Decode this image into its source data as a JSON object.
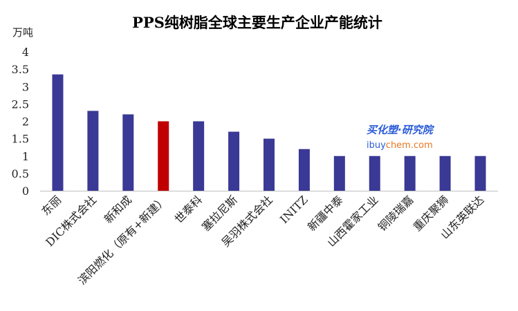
{
  "chart_data": {
    "type": "bar",
    "title": "PPS纯树脂全球主要生产企业产能统计",
    "ylabel": "万吨",
    "xlabel": "",
    "ylim": [
      0,
      4
    ],
    "yticks": [
      "0",
      "0.5",
      "1",
      "1.5",
      "2",
      "2.5",
      "3",
      "3.5",
      "4"
    ],
    "grid": false,
    "legend": "none",
    "categories": [
      "东丽",
      "DIC株式会社",
      "新和成",
      "滨阳燃化（原有+新建）",
      "世泰科",
      "塞拉尼斯",
      "吴羽株式会社",
      "INITZ",
      "新疆中泰",
      "山西霍家工业",
      "铜陵瑞嘉",
      "重庆聚狮",
      "山东英联达"
    ],
    "values": [
      3.35,
      2.3,
      2.2,
      2.0,
      2.0,
      1.7,
      1.5,
      1.2,
      1.0,
      1.0,
      1.0,
      1.0,
      1.0
    ],
    "colors": [
      "#3a3995",
      "#3a3995",
      "#3a3995",
      "#c00000",
      "#3a3995",
      "#3a3995",
      "#3a3995",
      "#3a3995",
      "#3a3995",
      "#3a3995",
      "#3a3995",
      "#3a3995",
      "#3a3995"
    ]
  },
  "watermark": {
    "brand": "买化塑·研究院",
    "url_prefix": "ibuy",
    "url_suffix": "chem.com",
    "colors": {
      "brand": "#2a5bd7",
      "url": "#2a5bd7",
      "accent": "#e87722"
    }
  }
}
